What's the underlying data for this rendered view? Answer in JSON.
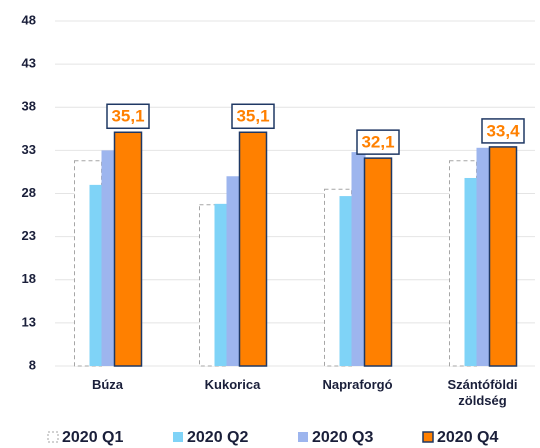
{
  "chart_data": {
    "type": "bar",
    "categories": [
      "Búza",
      "Kukorica",
      "Napraforgó",
      "Szántóföldi zöldség"
    ],
    "series": [
      {
        "name": "2020 Q1",
        "color": "#a6a6a6",
        "values": [
          31.8,
          26.7,
          28.5,
          31.8
        ]
      },
      {
        "name": "2020 Q2",
        "color": "#7fd3f7",
        "values": [
          29.0,
          26.8,
          27.7,
          29.8
        ]
      },
      {
        "name": "2020 Q3",
        "color": "#9db5ee",
        "values": [
          33.0,
          30.0,
          32.8,
          33.3
        ]
      },
      {
        "name": "2020 Q4",
        "color": "#ff8000",
        "values": [
          35.1,
          35.1,
          32.1,
          33.4
        ],
        "value_labels": [
          "35,1",
          "35,1",
          "32,1",
          "33,4"
        ]
      }
    ],
    "ylim": [
      8,
      48
    ],
    "yticks": [
      8,
      13,
      18,
      23,
      28,
      33,
      38,
      43,
      48
    ],
    "grid": true
  }
}
